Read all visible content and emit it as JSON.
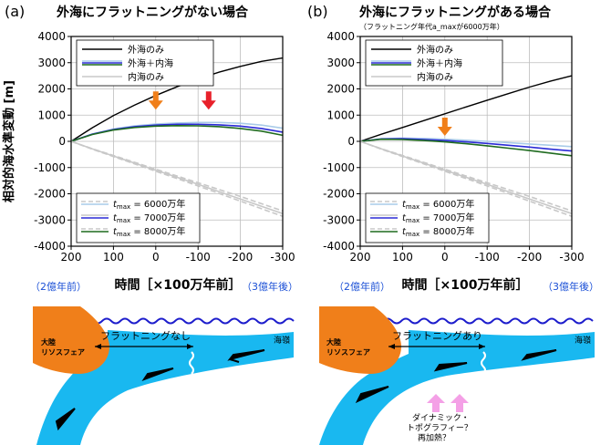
{
  "chart_data": [
    {
      "type": "line",
      "panel_label": "(a)",
      "title": "外海にフラットニングがない場合",
      "subtitle": "",
      "xlabel": "時間［×100万年前］",
      "ylabel": "相対的海水準変動 [m]",
      "xlim": [
        200,
        -300
      ],
      "ylim": [
        -4000,
        4000
      ],
      "x_ticks": [
        200,
        100,
        0,
        -100,
        -200,
        -300
      ],
      "y_ticks": [
        4000,
        3000,
        2000,
        1000,
        0,
        -1000,
        -2000,
        -3000,
        -4000
      ],
      "x_tick_labels": [
        "200",
        "100",
        "0",
        "-100",
        "-200",
        "-300"
      ],
      "y_tick_labels": [
        "4000",
        "3000",
        "2000",
        "1000",
        "0",
        "-1000",
        "-2000",
        "-3000",
        "-4000"
      ],
      "x_note_left": "（2億年前）",
      "x_note_right": "（3億年後）",
      "grid": true,
      "legend_top": [
        "外海のみ",
        "外海＋内海",
        "内海のみ"
      ],
      "legend_bottom": [
        {
          "pre": "t",
          "sub": "max",
          "post": " = 6000万年"
        },
        {
          "pre": "t",
          "sub": "max",
          "post": " = 7000万年"
        },
        {
          "pre": "t",
          "sub": "max",
          "post": " = 8000万年"
        }
      ],
      "arrows": [
        {
          "x": 0,
          "y": 1000,
          "color": "#f07f1a"
        },
        {
          "x": -125,
          "y": 1000,
          "color": "#e8202a"
        }
      ],
      "series": [
        {
          "name": "外海のみ",
          "color": "#000000",
          "dash": false,
          "x": [
            200,
            150,
            100,
            50,
            0,
            -50,
            -100,
            -150,
            -200,
            -250,
            -300
          ],
          "values": [
            0,
            520,
            980,
            1380,
            1750,
            2080,
            2380,
            2640,
            2860,
            3050,
            3180
          ]
        },
        {
          "name": "外海＋内海 (6000万年)",
          "color": "#a9cbe8",
          "dash": false,
          "x": [
            200,
            150,
            100,
            50,
            0,
            -50,
            -100,
            -150,
            -200,
            -250,
            -300
          ],
          "values": [
            0,
            280,
            470,
            590,
            660,
            700,
            720,
            720,
            690,
            620,
            500
          ]
        },
        {
          "name": "外海＋内海 (7000万年)",
          "color": "#2b2bd6",
          "dash": false,
          "x": [
            200,
            150,
            100,
            50,
            0,
            -50,
            -100,
            -150,
            -200,
            -250,
            -300
          ],
          "values": [
            0,
            270,
            450,
            560,
            620,
            650,
            650,
            630,
            580,
            490,
            350
          ]
        },
        {
          "name": "外海＋内海 (8000万年)",
          "color": "#1f6b1f",
          "dash": false,
          "x": [
            200,
            150,
            100,
            50,
            0,
            -50,
            -100,
            -150,
            -200,
            -250,
            -300
          ],
          "values": [
            0,
            260,
            430,
            530,
            580,
            600,
            590,
            560,
            490,
            390,
            230
          ]
        },
        {
          "name": "内海のみ (6000万年)",
          "color": "#c8c8c8",
          "dash": true,
          "x": [
            200,
            150,
            100,
            50,
            0,
            -50,
            -100,
            -150,
            -200,
            -250,
            -300
          ],
          "values": [
            0,
            -280,
            -540,
            -800,
            -1060,
            -1320,
            -1580,
            -1840,
            -2100,
            -2380,
            -2650
          ]
        },
        {
          "name": "内海のみ (7000万年)",
          "color": "#c8c8c8",
          "dash": false,
          "x": [
            200,
            150,
            100,
            50,
            0,
            -50,
            -100,
            -150,
            -200,
            -250,
            -300
          ],
          "values": [
            0,
            -290,
            -560,
            -830,
            -1100,
            -1370,
            -1640,
            -1920,
            -2200,
            -2480,
            -2760
          ]
        },
        {
          "name": "内海のみ (8000万年)",
          "color": "#c8c8c8",
          "dash": true,
          "x": [
            200,
            150,
            100,
            50,
            0,
            -50,
            -100,
            -150,
            -200,
            -250,
            -300
          ],
          "values": [
            0,
            -300,
            -580,
            -860,
            -1140,
            -1420,
            -1700,
            -1990,
            -2280,
            -2570,
            -2860
          ]
        }
      ]
    },
    {
      "type": "line",
      "panel_label": "(b)",
      "title": "外海にフラットニングがある場合",
      "subtitle": "（フラットニング年代a_maxが6000万年）",
      "xlabel": "時間［×100万年前］",
      "ylabel": "",
      "xlim": [
        200,
        -300
      ],
      "ylim": [
        -4000,
        4000
      ],
      "x_ticks": [
        200,
        100,
        0,
        -100,
        -200,
        -300
      ],
      "y_ticks": [
        4000,
        3000,
        2000,
        1000,
        0,
        -1000,
        -2000,
        -3000,
        -4000
      ],
      "x_tick_labels": [
        "200",
        "100",
        "0",
        "-100",
        "-200",
        "-300"
      ],
      "y_tick_labels": [
        "4000",
        "3000",
        "2000",
        "1000",
        "0",
        "-1000",
        "-2000",
        "-3000",
        "-4000"
      ],
      "x_note_left": "（2億年前）",
      "x_note_right": "（3億年後）",
      "grid": true,
      "legend_top": [
        "外海のみ",
        "外海＋内海",
        "内海のみ"
      ],
      "legend_bottom": [
        {
          "pre": "t",
          "sub": "max",
          "post": " = 6000万年"
        },
        {
          "pre": "t",
          "sub": "max",
          "post": " = 7000万年"
        },
        {
          "pre": "t",
          "sub": "max",
          "post": " = 8000万年"
        }
      ],
      "arrows": [
        {
          "x": 0,
          "y": 0,
          "color": "#f07f1a"
        }
      ],
      "series": [
        {
          "name": "外海のみ",
          "color": "#000000",
          "dash": false,
          "x": [
            200,
            150,
            100,
            50,
            0,
            -50,
            -100,
            -150,
            -200,
            -250,
            -300
          ],
          "values": [
            0,
            270,
            530,
            790,
            1050,
            1310,
            1570,
            1820,
            2070,
            2300,
            2500
          ]
        },
        {
          "name": "外海＋内海 (6000万年)",
          "color": "#a9cbe8",
          "dash": false,
          "x": [
            200,
            150,
            100,
            50,
            0,
            -50,
            -100,
            -150,
            -200,
            -250,
            -300
          ],
          "values": [
            0,
            100,
            120,
            110,
            80,
            40,
            0,
            -50,
            -100,
            -150,
            -200
          ]
        },
        {
          "name": "外海＋内海 (7000万年)",
          "color": "#2b2bd6",
          "dash": false,
          "x": [
            200,
            150,
            100,
            50,
            0,
            -50,
            -100,
            -150,
            -200,
            -250,
            -300
          ],
          "values": [
            0,
            90,
            100,
            70,
            30,
            -20,
            -80,
            -150,
            -220,
            -300,
            -370
          ]
        },
        {
          "name": "外海＋内海 (8000万年)",
          "color": "#1f6b1f",
          "dash": false,
          "x": [
            200,
            150,
            100,
            50,
            0,
            -50,
            -100,
            -150,
            -200,
            -250,
            -300
          ],
          "values": [
            0,
            80,
            70,
            30,
            -20,
            -90,
            -170,
            -260,
            -350,
            -450,
            -550
          ]
        },
        {
          "name": "内海のみ (6000万年)",
          "color": "#c8c8c8",
          "dash": true,
          "x": [
            200,
            150,
            100,
            50,
            0,
            -50,
            -100,
            -150,
            -200,
            -250,
            -300
          ],
          "values": [
            0,
            -280,
            -540,
            -800,
            -1060,
            -1320,
            -1580,
            -1840,
            -2100,
            -2380,
            -2650
          ]
        },
        {
          "name": "内海のみ (7000万年)",
          "color": "#c8c8c8",
          "dash": false,
          "x": [
            200,
            150,
            100,
            50,
            0,
            -50,
            -100,
            -150,
            -200,
            -250,
            -300
          ],
          "values": [
            0,
            -290,
            -560,
            -830,
            -1100,
            -1370,
            -1640,
            -1920,
            -2200,
            -2480,
            -2760
          ]
        },
        {
          "name": "内海のみ (8000万年)",
          "color": "#c8c8c8",
          "dash": true,
          "x": [
            200,
            150,
            100,
            50,
            0,
            -50,
            -100,
            -150,
            -200,
            -250,
            -300
          ],
          "values": [
            0,
            -300,
            -580,
            -860,
            -1140,
            -1420,
            -1700,
            -1990,
            -2280,
            -2570,
            -2860
          ]
        }
      ]
    }
  ],
  "diagram_a": {
    "continent_label_1": "大陸",
    "continent_label_2": "リソスフェア",
    "ridge_label": "海嶺",
    "flattening_label": "フラットニングなし"
  },
  "diagram_b": {
    "continent_label_1": "大陸",
    "continent_label_2": "リソスフェア",
    "ridge_label": "海嶺",
    "flattening_label": "フラットニングあり",
    "note_1": "ダイナミック・",
    "note_2": "トポグラフィー？",
    "note_3": "再加熱？"
  },
  "colors": {
    "ocean_plate": "#19b8f0",
    "continent": "#f07f1a",
    "sea_wave": "#1d1dcc",
    "note_arrow": "#f4a0e6",
    "note_blue": "#1a4fd6"
  }
}
